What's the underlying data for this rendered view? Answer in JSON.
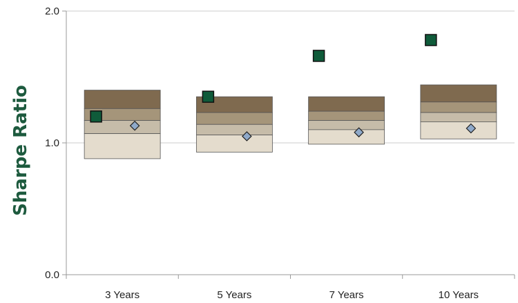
{
  "chart_data": {
    "type": "box",
    "title": "",
    "ylabel": "Sharpe Ratio",
    "xlabel": "",
    "ylim": [
      0.0,
      2.0
    ],
    "yticks": [
      "0.0",
      "1.0",
      "2.0"
    ],
    "grid": "horizontal",
    "categories": [
      "3 Years",
      "5 Years",
      "7 Years",
      "10 Years"
    ],
    "bands": [
      {
        "category": "3 Years",
        "p5": 0.88,
        "p25": 1.07,
        "p50": 1.17,
        "p75": 1.26,
        "p95": 1.4
      },
      {
        "category": "5 Years",
        "p5": 0.93,
        "p25": 1.06,
        "p50": 1.14,
        "p75": 1.23,
        "p95": 1.35
      },
      {
        "category": "7 Years",
        "p5": 0.99,
        "p25": 1.1,
        "p50": 1.17,
        "p75": 1.24,
        "p95": 1.35
      },
      {
        "category": "10 Years",
        "p5": 1.03,
        "p25": 1.16,
        "p50": 1.23,
        "p75": 1.31,
        "p95": 1.44
      }
    ],
    "series": [
      {
        "marker": "square",
        "color": "#0f5b3a",
        "values": [
          1.2,
          1.35,
          1.66,
          1.78
        ]
      },
      {
        "marker": "diamond",
        "color": "#8fa9c9",
        "values": [
          1.13,
          1.05,
          1.08,
          1.11
        ]
      }
    ],
    "colors": {
      "band_top": "#7f6a4f",
      "band_upper": "#a5957a",
      "band_lower": "#c6bca9",
      "band_bottom": "#e4dccd",
      "grid": "#cccccc",
      "axis": "#999999"
    }
  }
}
